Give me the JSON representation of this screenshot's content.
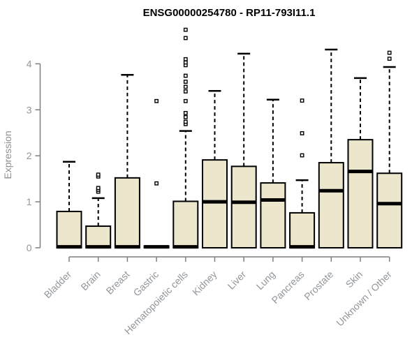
{
  "chart_data": {
    "type": "boxplot",
    "title": "ENSG00000254780 - RP11-793I11.1",
    "ylabel": "Expression",
    "xlabel": "",
    "ylim": [
      0,
      4.9
    ],
    "yticks": [
      0,
      1,
      2,
      3,
      4
    ],
    "grid": false,
    "legend": "none",
    "categories": [
      "Bladder",
      "Brain",
      "Breast",
      "Gastric",
      "Hematopoietic cells",
      "Kidney",
      "Liver",
      "Lung",
      "Pancreas",
      "Prostate",
      "Skin",
      "Unknown / Other"
    ],
    "boxes": [
      {
        "category": "Bladder",
        "q1": 0,
        "median": 0.02,
        "q3": 0.79,
        "whisker_low": 0,
        "whisker_high": 1.87,
        "outliers": []
      },
      {
        "category": "Brain",
        "q1": 0,
        "median": 0.02,
        "q3": 0.47,
        "whisker_low": 0,
        "whisker_high": 1.08,
        "outliers": [
          1.22,
          1.26,
          1.3,
          1.55,
          1.59
        ]
      },
      {
        "category": "Breast",
        "q1": 0,
        "median": 0.02,
        "q3": 1.52,
        "whisker_low": 0,
        "whisker_high": 3.76,
        "outliers": []
      },
      {
        "category": "Gastric",
        "q1": 0,
        "median": 0.02,
        "q3": 0.04,
        "whisker_low": 0,
        "whisker_high": null,
        "outliers": [
          1.4,
          3.19
        ]
      },
      {
        "category": "Hematopoietic cells",
        "q1": 0,
        "median": 0.02,
        "q3": 1.01,
        "whisker_low": 0,
        "whisker_high": 2.54,
        "outliers": [
          2.69,
          2.74,
          2.84,
          2.93,
          3.19,
          3.4,
          3.5,
          3.61,
          3.74,
          3.97,
          4.03,
          4.1,
          4.56,
          4.74
        ]
      },
      {
        "category": "Kidney",
        "q1": 0,
        "median": 1.0,
        "q3": 1.91,
        "whisker_low": 0,
        "whisker_high": 3.41,
        "outliers": []
      },
      {
        "category": "Liver",
        "q1": 0,
        "median": 0.99,
        "q3": 1.77,
        "whisker_low": 0,
        "whisker_high": 4.22,
        "outliers": []
      },
      {
        "category": "Lung",
        "q1": 0,
        "median": 1.04,
        "q3": 1.41,
        "whisker_low": 0,
        "whisker_high": 3.22,
        "outliers": []
      },
      {
        "category": "Pancreas",
        "q1": 0,
        "median": 0.02,
        "q3": 0.76,
        "whisker_low": 0,
        "whisker_high": 1.47,
        "outliers": [
          2.01,
          2.49,
          3.2
        ]
      },
      {
        "category": "Prostate",
        "q1": 0,
        "median": 1.24,
        "q3": 1.85,
        "whisker_low": 0,
        "whisker_high": 4.31,
        "outliers": []
      },
      {
        "category": "Skin",
        "q1": 0,
        "median": 1.66,
        "q3": 2.35,
        "whisker_low": 0,
        "whisker_high": 3.69,
        "outliers": []
      },
      {
        "category": "Unknown / Other",
        "q1": 0,
        "median": 0.96,
        "q3": 1.62,
        "whisker_low": 0,
        "whisker_high": 3.93,
        "outliers": [
          4.11,
          4.24
        ]
      }
    ],
    "colors": {
      "box_fill": "#ECE7CC",
      "box_stroke": "#000000",
      "median": "#000000",
      "whisker": "#000000",
      "outlier_fill": "#FFFFFF",
      "axis": "#7F7F7F",
      "tick_label": "#91969B",
      "title": "#000000",
      "background": "#FFFFFF"
    }
  }
}
